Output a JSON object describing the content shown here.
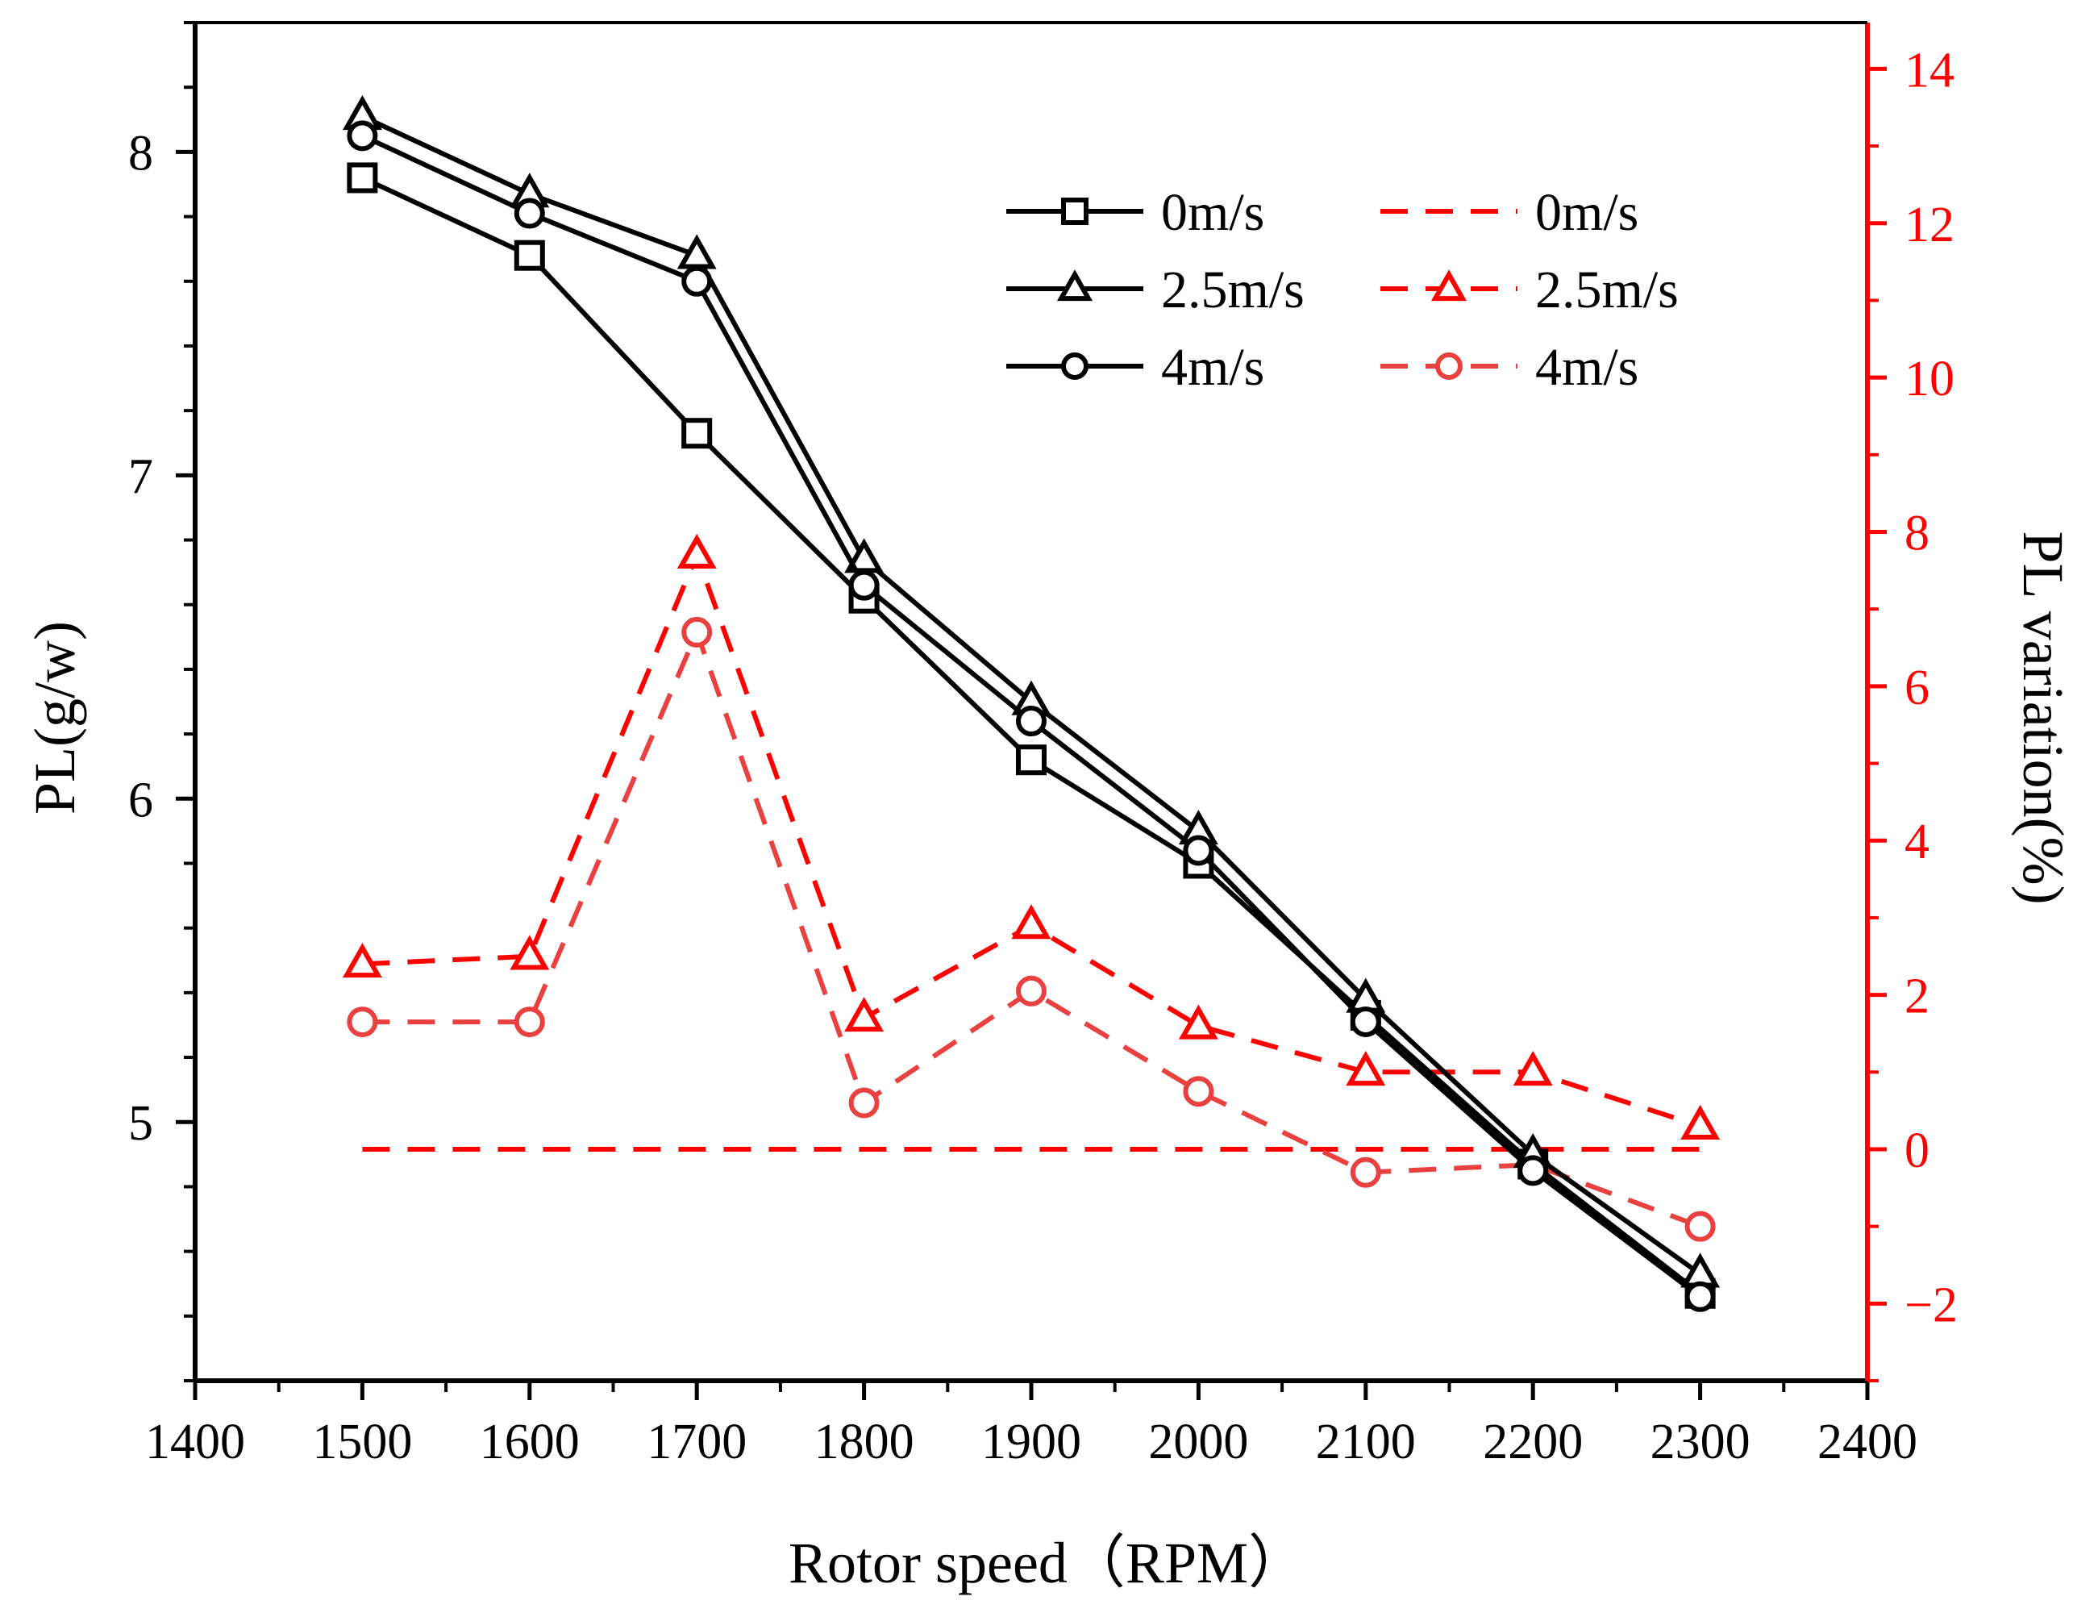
{
  "chart_data": {
    "type": "line",
    "xlabel": "Rotor speed（RPM）",
    "ylabel_left": "PL(g/w)",
    "ylabel_right": "PL variation(%)",
    "xlim": [
      1400,
      2400
    ],
    "ylim_left": [
      4.2,
      8.4
    ],
    "ylim_right": [
      -3,
      14.6
    ],
    "x_ticks": [
      1400,
      1500,
      1600,
      1700,
      1800,
      1900,
      2000,
      2100,
      2200,
      2300,
      2400
    ],
    "y_left_ticks": [
      5,
      6,
      7,
      8
    ],
    "y_right_ticks": [
      -2,
      0,
      2,
      4,
      6,
      8,
      10,
      12,
      14
    ],
    "x": [
      1500,
      1600,
      1700,
      1800,
      1900,
      2000,
      2100,
      2200,
      2300
    ],
    "series": [
      {
        "name": "0m/s",
        "axis": "left",
        "marker": "square",
        "values": [
          7.92,
          7.68,
          7.13,
          6.62,
          6.12,
          5.8,
          5.33,
          4.87,
          4.47
        ]
      },
      {
        "name": "2.5m/s",
        "axis": "left",
        "marker": "triangle",
        "values": [
          8.11,
          7.87,
          7.68,
          6.74,
          6.3,
          5.9,
          5.38,
          4.9,
          4.53
        ]
      },
      {
        "name": "4m/s",
        "axis": "left",
        "marker": "circle",
        "values": [
          8.05,
          7.81,
          7.6,
          6.66,
          6.24,
          5.84,
          5.31,
          4.85,
          4.46
        ]
      },
      {
        "name": "0m/s",
        "axis": "right",
        "marker": "none",
        "values": [
          0,
          0,
          0,
          0,
          0,
          0,
          0,
          0,
          0
        ]
      },
      {
        "name": "2.5m/s",
        "axis": "right",
        "marker": "triangle",
        "values": [
          2.4,
          2.5,
          7.7,
          1.7,
          2.9,
          1.6,
          1.0,
          1.0,
          0.3
        ]
      },
      {
        "name": "4m/s",
        "axis": "right",
        "marker": "circle",
        "values": [
          1.65,
          1.65,
          6.7,
          0.6,
          2.05,
          0.75,
          -0.3,
          -0.2,
          -1.0
        ]
      }
    ],
    "legend_position": "top-right",
    "grid": false
  },
  "colors": {
    "left_series": "#000000",
    "right_axis": "#ff0000",
    "red_dashed": "#ff0000",
    "light_red_dashed": "#e8413f"
  }
}
